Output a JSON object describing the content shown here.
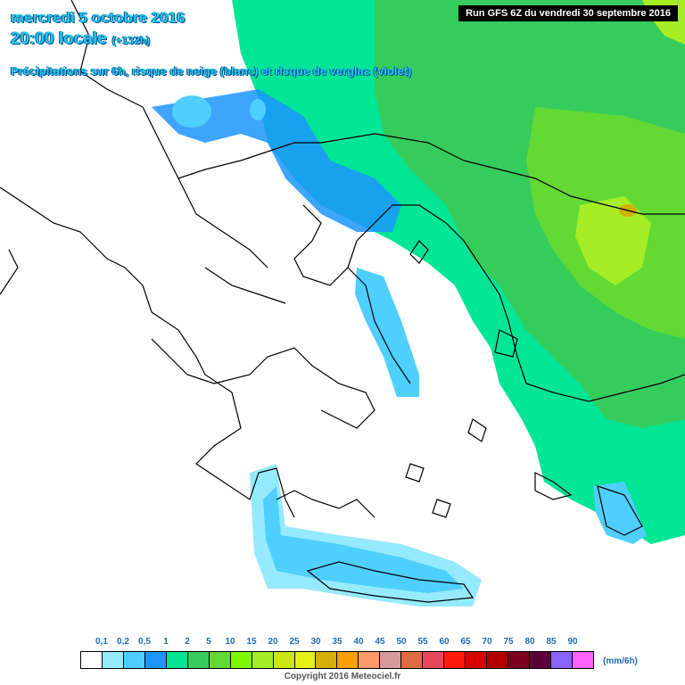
{
  "header": {
    "date": "mercredi 5 octobre 2016",
    "time": "20:00 locale",
    "lead": "(+132h)",
    "description": "Précipitations sur 6h, risque de neige (blanc) et risque de verglas (violet)"
  },
  "run_info": "Run GFS 6Z du vendredi 30 septembre 2016",
  "legend": {
    "unit": "(mm/6h)",
    "ticks": [
      "0,1",
      "0,2",
      "0,5",
      "1",
      "2",
      "5",
      "10",
      "15",
      "20",
      "25",
      "30",
      "35",
      "40",
      "45",
      "50",
      "55",
      "60",
      "65",
      "70",
      "75",
      "80",
      "85",
      "90"
    ],
    "colors": [
      "#ffffff",
      "#95eaff",
      "#4fcfff",
      "#1c95ff",
      "#00e596",
      "#36cc5c",
      "#63d934",
      "#7cf900",
      "#a6ed26",
      "#cbe517",
      "#e5f019",
      "#d4b00a",
      "#ffa100",
      "#ff9968",
      "#d79a9a",
      "#e06a41",
      "#e6465e",
      "#ff1c0a",
      "#d90000",
      "#b20000",
      "#7d0020",
      "#5c0039",
      "#8b64ff",
      "#ff64ff"
    ]
  },
  "copyright": "Copyright 2016 Meteociel.fr"
}
